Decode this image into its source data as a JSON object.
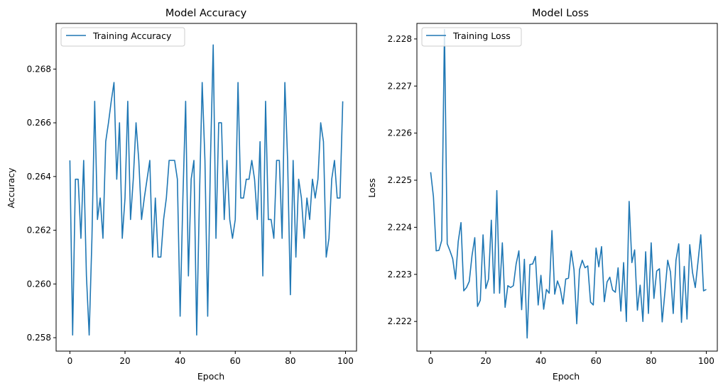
{
  "colors": {
    "series": "#1f77b4",
    "axis": "#000000",
    "background": "#ffffff",
    "legend_border": "#cccccc"
  },
  "chart_data": [
    {
      "type": "line",
      "title": "Model Accuracy",
      "xlabel": "Epoch",
      "ylabel": "Accuracy",
      "xlim": [
        -5,
        104
      ],
      "ylim": [
        0.2575,
        0.2697
      ],
      "xticks": [
        0,
        20,
        40,
        60,
        80,
        100
      ],
      "yticks": [
        0.258,
        0.26,
        0.262,
        0.264,
        0.266,
        0.268
      ],
      "xtick_labels": [
        "0",
        "20",
        "40",
        "60",
        "80",
        "100"
      ],
      "ytick_labels": [
        "0.258",
        "0.260",
        "0.262",
        "0.264",
        "0.266",
        "0.268"
      ],
      "grid": false,
      "legend_position": "upper left",
      "series": [
        {
          "name": "Training Accuracy",
          "color": "#1f77b4",
          "values": [
            0.2646,
            0.2581,
            0.2639,
            0.2639,
            0.2617,
            0.2646,
            0.2603,
            0.2581,
            0.2617,
            0.2668,
            0.2624,
            0.2632,
            0.2617,
            0.2653,
            0.266,
            0.2668,
            0.2675,
            0.2639,
            0.266,
            0.2617,
            0.2632,
            0.2668,
            0.2624,
            0.2639,
            0.266,
            0.2646,
            0.2624,
            0.2632,
            0.2639,
            0.2646,
            0.261,
            0.2632,
            0.261,
            0.261,
            0.2624,
            0.2632,
            0.2646,
            0.2646,
            0.2646,
            0.2639,
            0.2588,
            0.2632,
            0.2668,
            0.2603,
            0.2639,
            0.2646,
            0.2581,
            0.2632,
            0.2675,
            0.2646,
            0.2588,
            0.2646,
            0.2689,
            0.2617,
            0.266,
            0.266,
            0.2624,
            0.2646,
            0.2624,
            0.2617,
            0.2624,
            0.2675,
            0.2632,
            0.2632,
            0.2639,
            0.2639,
            0.2646,
            0.2639,
            0.2624,
            0.2653,
            0.2603,
            0.2668,
            0.2624,
            0.2624,
            0.2617,
            0.2646,
            0.2646,
            0.2617,
            0.2675,
            0.2646,
            0.2596,
            0.2646,
            0.261,
            0.2639,
            0.2632,
            0.2617,
            0.2632,
            0.2624,
            0.2639,
            0.2632,
            0.2639,
            0.266,
            0.2653,
            0.261,
            0.2617,
            0.2639,
            0.2646,
            0.2632,
            0.2632,
            0.2668
          ]
        }
      ]
    },
    {
      "type": "line",
      "title": "Model Loss",
      "xlabel": "Epoch",
      "ylabel": "Loss",
      "xlim": [
        -5,
        104
      ],
      "ylim": [
        2.22137,
        2.22833
      ],
      "xticks": [
        0,
        20,
        40,
        60,
        80,
        100
      ],
      "yticks": [
        2.222,
        2.223,
        2.224,
        2.225,
        2.226,
        2.227,
        2.228
      ],
      "xtick_labels": [
        "0",
        "20",
        "40",
        "60",
        "80",
        "100"
      ],
      "ytick_labels": [
        "2.222",
        "2.223",
        "2.224",
        "2.225",
        "2.226",
        "2.227",
        "2.228"
      ],
      "grid": false,
      "legend_position": "upper left",
      "series": [
        {
          "name": "Training Loss",
          "color": "#1f77b4",
          "values": [
            2.22517,
            2.22465,
            2.2235,
            2.22351,
            2.22372,
            2.2282,
            2.22365,
            2.2235,
            2.22333,
            2.2229,
            2.2237,
            2.2241,
            2.22265,
            2.22272,
            2.22285,
            2.2234,
            2.22378,
            2.22232,
            2.22245,
            2.22384,
            2.2227,
            2.2229,
            2.22415,
            2.2226,
            2.22478,
            2.2226,
            2.22367,
            2.2223,
            2.22276,
            2.22272,
            2.22276,
            2.22322,
            2.2235,
            2.22225,
            2.22332,
            2.22165,
            2.22321,
            2.22322,
            2.22338,
            2.22235,
            2.22298,
            2.22226,
            2.22268,
            2.2226,
            2.22393,
            2.22258,
            2.22286,
            2.2227,
            2.22237,
            2.2229,
            2.22292,
            2.2235,
            2.2231,
            2.22195,
            2.2231,
            2.2233,
            2.22314,
            2.22318,
            2.22241,
            2.22235,
            2.22356,
            2.22316,
            2.22359,
            2.22242,
            2.22284,
            2.22294,
            2.22267,
            2.22262,
            2.22314,
            2.22222,
            2.22325,
            2.222,
            2.22455,
            2.22325,
            2.22352,
            2.22224,
            2.22277,
            2.222,
            2.22348,
            2.22217,
            2.22367,
            2.22249,
            2.22307,
            2.22312,
            2.22199,
            2.22263,
            2.2233,
            2.22305,
            2.22217,
            2.2233,
            2.22365,
            2.22198,
            2.22317,
            2.22205,
            2.22363,
            2.22304,
            2.22272,
            2.22327,
            2.22384,
            2.22265,
            2.22268
          ]
        }
      ]
    }
  ]
}
